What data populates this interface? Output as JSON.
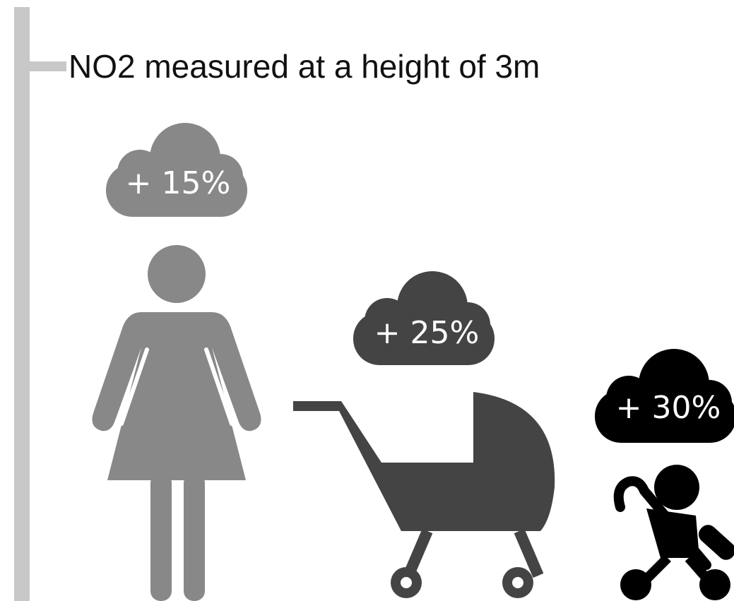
{
  "title": "NO2 measured at a height of 3m",
  "items": [
    {
      "label": "+ 15%"
    },
    {
      "label": "+ 25%"
    },
    {
      "label": "+ 30%"
    }
  ]
}
